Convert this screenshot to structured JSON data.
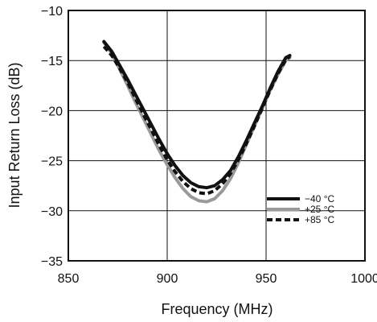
{
  "chart_data": {
    "type": "line",
    "xlabel": "Frequency (MHz)",
    "ylabel": "Input Return Loss (dB)",
    "xlim": [
      850,
      1000
    ],
    "ylim": [
      -35,
      -10
    ],
    "xticks": [
      850,
      900,
      950,
      1000
    ],
    "yticks": [
      -35,
      -30,
      -25,
      -20,
      -15,
      -10
    ],
    "x_tick_labels": [
      "850",
      "900",
      "950",
      "1000"
    ],
    "y_tick_labels": [
      "−35",
      "−30",
      "−25",
      "−20",
      "−15",
      "−10"
    ],
    "grid": true,
    "legend_position": "right",
    "series": [
      {
        "name": "−40 °C",
        "color": "#111111",
        "style": "solid",
        "x": [
          868,
          872,
          876,
          880,
          884,
          888,
          892,
          896,
          900,
          904,
          908,
          912,
          916,
          920,
          924,
          928,
          932,
          936,
          940,
          944,
          948,
          952,
          956,
          960,
          962
        ],
        "y": [
          -13.1,
          -14.1,
          -15.5,
          -16.9,
          -18.4,
          -19.9,
          -21.4,
          -22.9,
          -24.3,
          -25.5,
          -26.5,
          -27.2,
          -27.6,
          -27.7,
          -27.5,
          -26.9,
          -26.0,
          -24.6,
          -23.0,
          -21.3,
          -19.6,
          -17.8,
          -16.1,
          -14.7,
          -14.5
        ]
      },
      {
        "name": "+25 °C",
        "color": "#999999",
        "style": "solid",
        "x": [
          868,
          872,
          876,
          880,
          884,
          888,
          892,
          896,
          900,
          904,
          908,
          912,
          916,
          920,
          924,
          928,
          932,
          936,
          940,
          944,
          948,
          952,
          956,
          960,
          962
        ],
        "y": [
          -13.2,
          -14.3,
          -15.9,
          -17.5,
          -19.2,
          -20.8,
          -22.4,
          -24.0,
          -25.4,
          -26.7,
          -27.8,
          -28.6,
          -29.0,
          -29.1,
          -28.8,
          -28.0,
          -26.8,
          -25.2,
          -23.4,
          -21.6,
          -19.8,
          -18.0,
          -16.4,
          -15.0,
          -14.7
        ]
      },
      {
        "name": "+85 °C",
        "color": "#111111",
        "style": "dashed",
        "x": [
          868,
          872,
          876,
          880,
          884,
          888,
          892,
          896,
          900,
          904,
          908,
          912,
          916,
          920,
          924,
          928,
          932,
          936,
          940,
          944,
          948,
          952,
          956,
          960,
          962
        ],
        "y": [
          -13.6,
          -14.5,
          -15.8,
          -17.2,
          -18.8,
          -20.4,
          -21.9,
          -23.5,
          -24.9,
          -26.1,
          -27.1,
          -27.8,
          -28.2,
          -28.3,
          -28.0,
          -27.3,
          -26.3,
          -24.9,
          -23.3,
          -21.6,
          -19.8,
          -18.0,
          -16.3,
          -14.9,
          -14.6
        ]
      }
    ]
  }
}
